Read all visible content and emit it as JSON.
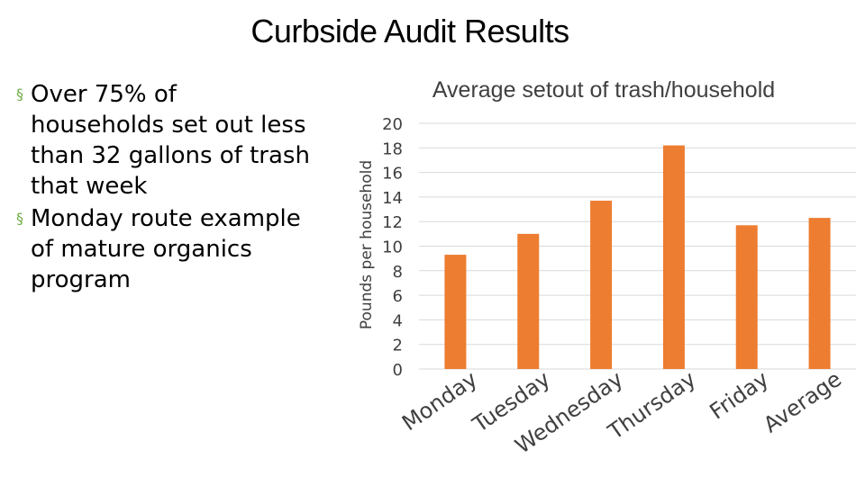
{
  "slide": {
    "title": "Curbside Audit Results",
    "bullet_glyph": "§",
    "bullets": [
      "Over 75% of households set out less than 32 gallons of trash that week",
      "Monday route example of mature organics program"
    ]
  },
  "chart_data": {
    "type": "bar",
    "title": "Average setout of trash/household",
    "xlabel": "",
    "ylabel": "Pounds per household",
    "categories": [
      "Monday",
      "Tuesday",
      "Wednesday",
      "Thursday",
      "Friday",
      "Average"
    ],
    "values": [
      9.3,
      11.0,
      13.7,
      18.2,
      11.7,
      12.3
    ],
    "ylim": [
      0,
      20
    ],
    "yticks": [
      "0",
      "2",
      "4",
      "6",
      "8",
      "10",
      "12",
      "14",
      "16",
      "18",
      "20"
    ],
    "grid": true,
    "bar_color": "#ed7d31",
    "grid_color": "#d9d9d9"
  }
}
